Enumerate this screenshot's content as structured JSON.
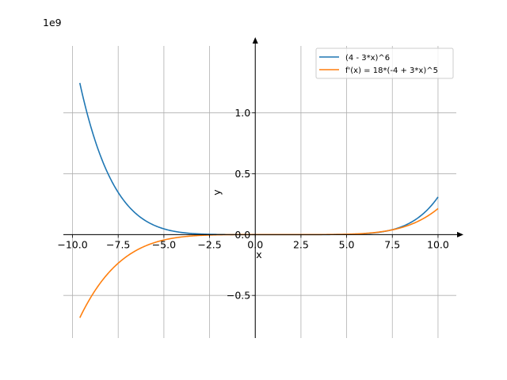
{
  "chart_data": {
    "type": "line",
    "title": "",
    "xlabel": "x",
    "ylabel": "y",
    "offset_text": "1e9",
    "xlim": [
      -10.5,
      11.0
    ],
    "ylim": [
      -0.85,
      1.55
    ],
    "x_ticks": [
      -10.0,
      -7.5,
      -5.0,
      -2.5,
      0.0,
      2.5,
      5.0,
      7.5,
      10.0
    ],
    "x_tick_labels": [
      "−10.0",
      "−7.5",
      "−5.0",
      "−2.5",
      "0.0",
      "2.5",
      "5.0",
      "7.5",
      "10.0"
    ],
    "y_ticks": [
      -0.5,
      0.0,
      0.5,
      1.0
    ],
    "y_tick_labels": [
      "−0.5",
      "0.0",
      "0.5",
      "1.0"
    ],
    "grid": true,
    "legend_position": "top-right",
    "x_domain": [
      -9.6,
      10.0
    ],
    "series": [
      {
        "name": "(4 - 3*x)^6",
        "formula": "(4 - 3*x)^6",
        "color": "#1f77b4"
      },
      {
        "name": "f'(x) = 18*(-4 + 3*x)^5",
        "formula": "18*(-4 + 3*x)^5",
        "color": "#ff7f0e"
      }
    ]
  }
}
